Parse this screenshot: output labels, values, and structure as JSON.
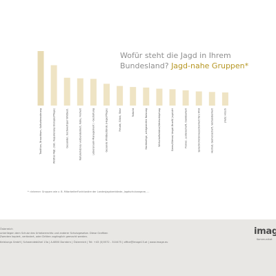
{
  "title": {
    "line1": "Wofür steht die Jagd in Ihrem",
    "line2_prefix": "Bundesland?",
    "line2_highlight": "Jagd-nahe Gruppen*"
  },
  "footnote": "* «interne» Gruppen wie z. B. MitarbeiterFunktionäre der Landesjagdverbände, Jagdschutzorgane, ...",
  "chart_data": {
    "type": "bar",
    "title": "Wofür steht die Jagd in Ihrem Bundesland? Jagd-nahe Gruppen*",
    "categories": [
      "Tradition, Brauchtum, Kulturbewahrung",
      "Wildtier-Mgt. (inkl. Regulierung Biologie/Pflege)",
      "Gesunder, hochwertiger Wildbest.",
      "Naturerlebnis/-verbundenheit, Ruhe, Freiheit",
      "Lebensraum-Management / -Gestaltung",
      "Gesunde Wildbestände (Hege/Pflege)",
      "Freude, Glück, Stolz",
      "Rotwild",
      "Nachhaltige, wildgerechte Nutzung",
      "Wirtschaftsfaktor/Wertschöpfung",
      "Gams/Gämse/ Angst-Brunft/ Jagd-Art",
      "Pionier, Leidenschaft, Dankbarkeit",
      "Sprachrohr/Sinnesschonheit fürs Wild",
      "Heimat, Gemeinschaft, Verbundenheit",
      "(Reh) Hirsch"
    ],
    "values": [
      100,
      74,
      51,
      50,
      49,
      40,
      36,
      34,
      33,
      31,
      30,
      28,
      26,
      25,
      24
    ],
    "ylim": [
      0,
      100
    ],
    "grid": false,
    "legend": "none",
    "bar_color": "#efe4c4",
    "first_bar_color": "#e8dbb4"
  },
  "footer": {
    "line1": "Österreich",
    "line2": "unterliegen dem Schutz des Urheberrechts und anderer Schutzgesetze. Diese Grafiken",
    "line3": "Zwecken kopiert, verändert, oder Dritten zugänglich gemacht werden.",
    "line4": "tleistungs GmbH | Schwendebühel 13a | A-6850 Dornbirn | Österreich | Tel: +43 (0)5572 - 310475 | office@image13.at | www.image.eu",
    "brand": "imag",
    "brand_sub": "Kommunikat"
  }
}
